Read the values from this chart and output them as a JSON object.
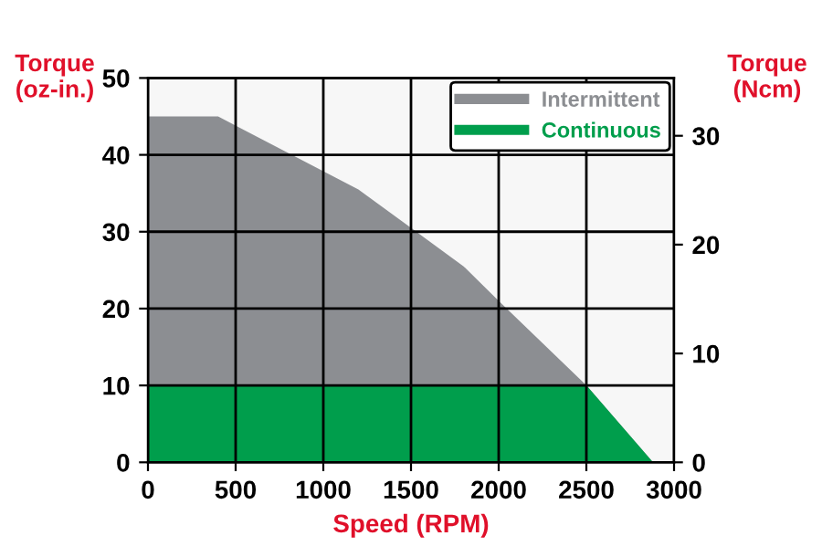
{
  "chart_data": {
    "type": "area",
    "xlabel": "Speed (RPM)",
    "ylabel": "Torque\n(oz-in.)",
    "y2label": "Torque\n(Ncm)",
    "series": [
      {
        "name": "Intermittent",
        "color": "#8c8e92",
        "x": [
          0,
          400,
          1200,
          1500,
          1800,
          2000,
          2500,
          2880
        ],
        "values": [
          45,
          45,
          35.5,
          30.5,
          25.5,
          21,
          10,
          0
        ]
      },
      {
        "name": "Continuous",
        "color": "#009e4c",
        "x": [
          0,
          2500,
          2880
        ],
        "values": [
          10,
          10,
          0
        ]
      }
    ],
    "xlim": [
      0,
      3000
    ],
    "xticks": [
      0,
      500,
      1000,
      1500,
      2000,
      2500,
      3000
    ],
    "ylim": [
      0,
      50
    ],
    "yticks": [
      0,
      10,
      20,
      30,
      40,
      50
    ],
    "y2lim": [
      0,
      35.31
    ],
    "y2ticks": [
      0,
      10,
      20,
      30
    ],
    "grid": true,
    "legend": "top right"
  }
}
